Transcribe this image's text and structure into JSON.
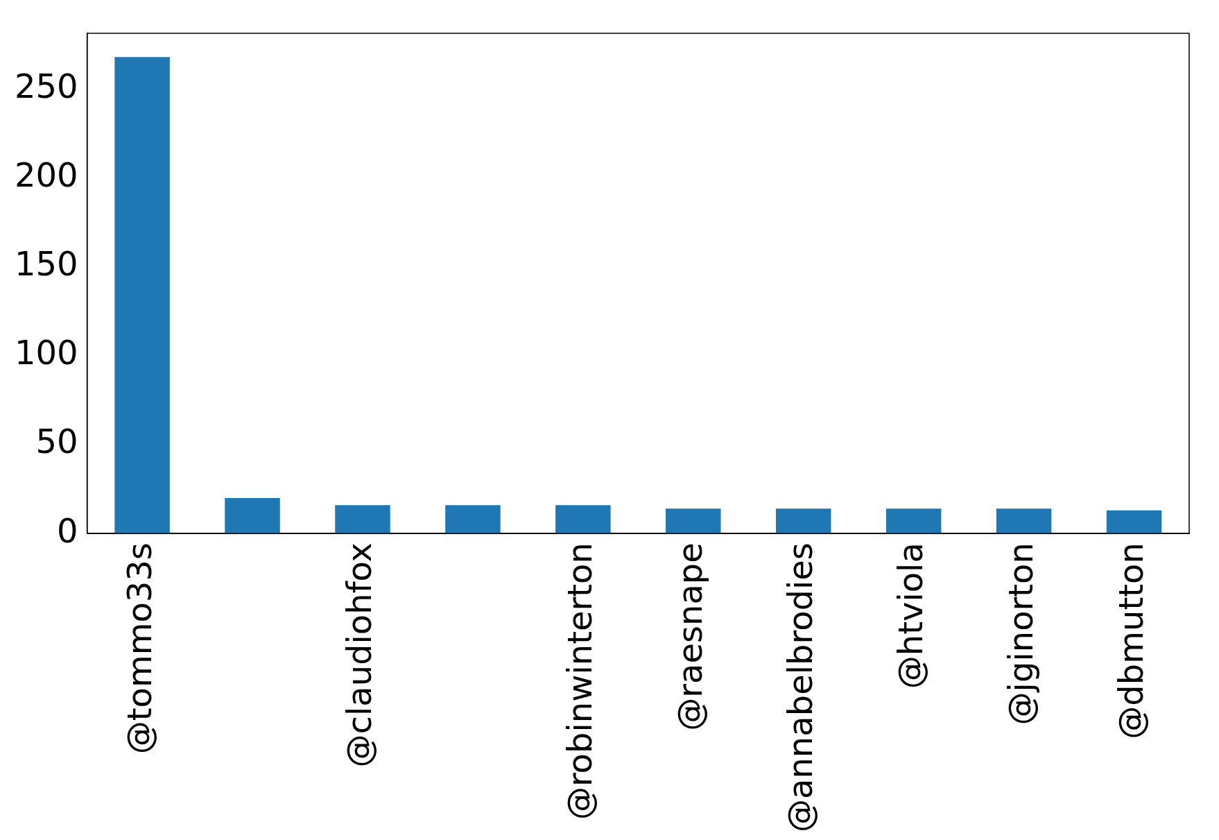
{
  "chart_data": {
    "type": "bar",
    "categories": [
      "@tommo33s",
      null,
      "@claudiohfox",
      null,
      "@robinwinterton",
      "@raesnape",
      "@annabelbrodies",
      "@htviola",
      "@jginorton",
      "@dbmutton"
    ],
    "values": [
      268,
      20,
      16,
      16,
      16,
      14,
      14,
      14,
      14,
      13
    ],
    "color": "#1f77b4",
    "ylim": [
      0,
      281.4
    ],
    "yticks": [
      0,
      50,
      100,
      150,
      200,
      250
    ],
    "grid": false,
    "legend": false
  }
}
